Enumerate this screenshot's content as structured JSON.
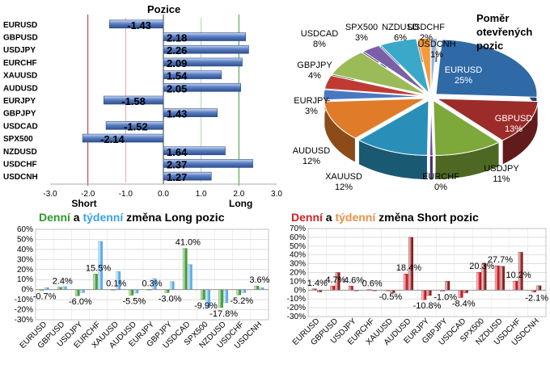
{
  "positions": {
    "title": "Pozice",
    "short_label": "Short",
    "long_label": "Long",
    "chart_data": {
      "type": "bar",
      "orientation": "horizontal",
      "categories": [
        "EURUSD",
        "GBPUSD",
        "USDJPY",
        "EURCHF",
        "XAUUSD",
        "AUDUSD",
        "EURJPY",
        "GBPJPY",
        "USDCAD",
        "SPX500",
        "NZDUSD",
        "USDCHF",
        "USDCNH"
      ],
      "values": [
        -1.43,
        2.18,
        2.26,
        2.09,
        1.54,
        2.05,
        -1.58,
        1.43,
        -1.52,
        -2.14,
        1.64,
        2.37,
        1.27
      ],
      "value_labels": [
        "-1.43",
        "2.18",
        "2.26",
        "2.09",
        "1.54",
        "2.05",
        "-1.58",
        "1.43",
        "-1.52",
        "-2.14",
        "1.64",
        "2.37",
        "1.27"
      ],
      "xlim": [
        -3.0,
        3.0
      ],
      "xticks": [
        "-3.0",
        "-2.0",
        "-1.0",
        "0.0",
        "1.0",
        "2.0",
        "3.0"
      ],
      "colors": {
        "bar": "#5b7fc4",
        "short_line": "#c0282d",
        "long_line": "#3a9a3a"
      }
    }
  },
  "pie": {
    "title_lines": [
      "Poměr",
      "otevřených",
      "pozic"
    ],
    "chart_data": {
      "type": "pie",
      "slices": [
        {
          "name": "EURUSD",
          "label": "25%",
          "value": 25,
          "color": "#2f6aa6"
        },
        {
          "name": "GBPUSD",
          "label": "13%",
          "value": 13,
          "color": "#9c2c2a"
        },
        {
          "name": "USDJPY",
          "label": "11%",
          "value": 11,
          "color": "#7da83a"
        },
        {
          "name": "EURCHF",
          "label": "0%",
          "value": 0.5,
          "color": "#6a4f96"
        },
        {
          "name": "XAUUSD",
          "label": "12%",
          "value": 12,
          "color": "#2a8fb8"
        },
        {
          "name": "AUDUSD",
          "label": "12%",
          "value": 12,
          "color": "#e07b2a"
        },
        {
          "name": "EURJPY",
          "label": "3%",
          "value": 3,
          "color": "#4a78c0"
        },
        {
          "name": "GBPJPY",
          "label": "4%",
          "value": 4,
          "color": "#c03a34"
        },
        {
          "name": "USDCAD",
          "label": "8%",
          "value": 8,
          "color": "#9bbb59"
        },
        {
          "name": "SPX500",
          "label": "3%",
          "value": 3,
          "color": "#7b5ea8"
        },
        {
          "name": "NZDUSD",
          "label": "6%",
          "value": 6,
          "color": "#3aa8c8"
        },
        {
          "name": "USDCHF",
          "label": "2%",
          "value": 2,
          "color": "#f59a3c"
        },
        {
          "name": "USDCNH",
          "label": "1%",
          "value": 1,
          "color": "#95b3d7"
        }
      ]
    }
  },
  "long_changes": {
    "title_parts": [
      "Denní",
      " a ",
      "týdenní",
      " změna Long pozic"
    ],
    "chart_data": {
      "type": "bar",
      "categories": [
        "EURUSD",
        "GBPUSD",
        "USDJPY",
        "EURCHF",
        "XAUUSD",
        "AUDUSD",
        "EURJPY",
        "GBPJPY",
        "USDCAD",
        "SPX500",
        "NZDUSD",
        "USDCHF",
        "USDCNH"
      ],
      "series": [
        {
          "name": "Denní",
          "color": "#3f9a2e",
          "values": [
            -0.7,
            2.4,
            -6.0,
            15.5,
            0.1,
            -5.5,
            0.3,
            -3.0,
            41.0,
            -9.9,
            -17.8,
            -5.2,
            3.6
          ]
        },
        {
          "name": "týdenní",
          "color": "#5aaae8",
          "values": [
            2.0,
            3.0,
            -3.0,
            48.0,
            18.0,
            -3.5,
            11.0,
            8.0,
            25.0,
            -18.0,
            -13.0,
            -3.0,
            2.0
          ]
        }
      ],
      "data_labels": [
        {
          "category": "EURUSD",
          "text": "-0.7%"
        },
        {
          "category": "GBPUSD",
          "text": "2.4%"
        },
        {
          "category": "USDJPY",
          "text": "-6.0%"
        },
        {
          "category": "EURCHF",
          "text": "15.5%"
        },
        {
          "category": "XAUUSD",
          "text": "0.1%"
        },
        {
          "category": "AUDUSD",
          "text": "-5.5%"
        },
        {
          "category": "EURJPY",
          "text": "0.3%"
        },
        {
          "category": "GBPJPY",
          "text": "-3.0%"
        },
        {
          "category": "USDCAD",
          "text": "41.0%"
        },
        {
          "category": "SPX500",
          "text": "-9.9%"
        },
        {
          "category": "NZDUSD",
          "text": "-17.8%"
        },
        {
          "category": "USDCHF",
          "text": "-5.2%"
        },
        {
          "category": "USDCNH",
          "text": "3.6%"
        }
      ],
      "ylim": [
        -30,
        60
      ],
      "yticks": [
        "-30%",
        "-20%",
        "-10%",
        "0%",
        "10%",
        "20%",
        "30%",
        "40%",
        "50%",
        "60%"
      ],
      "grid": true
    }
  },
  "short_changes": {
    "title_parts": [
      "Denní",
      " a ",
      "týdenní",
      " změna Short pozic"
    ],
    "chart_data": {
      "type": "bar",
      "categories": [
        "EURUSD",
        "GBPUSD",
        "USDJPY",
        "EURCHF",
        "XAUUSD",
        "AUDUSD",
        "EURJPY",
        "GBPJPY",
        "USDCAD",
        "SPX500",
        "NZDUSD",
        "USDCHF",
        "USDCNH"
      ],
      "series": [
        {
          "name": "Denní",
          "color": "#c8141e",
          "values": [
            1.4,
            4.7,
            4.6,
            0.6,
            -0.5,
            18.4,
            -10.8,
            -1.0,
            -8.4,
            20.3,
            27.7,
            10.2,
            -2.1
          ]
        },
        {
          "name": "týdenní",
          "color": "#8a1d1d",
          "values": [
            -2.0,
            20.0,
            0.0,
            0.0,
            -3.0,
            60.0,
            -6.0,
            10.0,
            -3.0,
            30.0,
            27.0,
            43.0,
            5.0
          ]
        }
      ],
      "data_labels": [
        {
          "category": "EURUSD",
          "text": "1.4%"
        },
        {
          "category": "GBPUSD",
          "text": "4.7%"
        },
        {
          "category": "USDJPY",
          "text": "4.6%"
        },
        {
          "category": "EURCHF",
          "text": "0.6%"
        },
        {
          "category": "XAUUSD",
          "text": "-0.5%"
        },
        {
          "category": "AUDUSD",
          "text": "18.4%"
        },
        {
          "category": "EURJPY",
          "text": "-10.8%"
        },
        {
          "category": "GBPJPY",
          "text": "-1.0%"
        },
        {
          "category": "USDCAD",
          "text": "-8.4%"
        },
        {
          "category": "SPX500",
          "text": "20.3%"
        },
        {
          "category": "NZDUSD",
          "text": "27.7%"
        },
        {
          "category": "USDCHF",
          "text": "10.2%"
        },
        {
          "category": "USDCNH",
          "text": "-2.1%"
        }
      ],
      "ylim": [
        -30,
        70
      ],
      "yticks": [
        "-30%",
        "-20%",
        "-10%",
        "0%",
        "10%",
        "20%",
        "30%",
        "40%",
        "50%",
        "60%",
        "70%"
      ],
      "grid": true
    }
  }
}
